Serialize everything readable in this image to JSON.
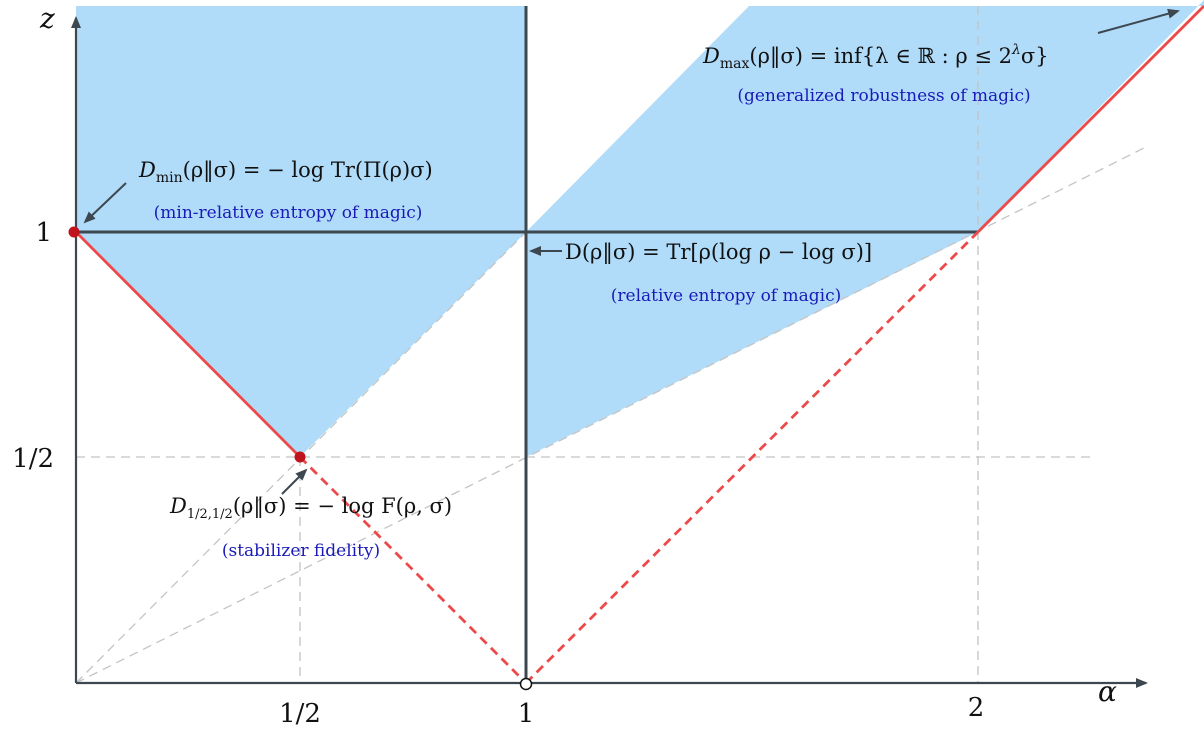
{
  "axes": {
    "x_label": "α",
    "y_label": "z",
    "x_ticks": [
      "1/2",
      "1",
      "2"
    ],
    "y_ticks": [
      "1/2",
      "1"
    ]
  },
  "annotations": {
    "dmax_formula": "D_max(ρ‖σ) = inf{λ ∈ ℝ : ρ ≤ 2^λ σ}",
    "dmax_formula_parts": {
      "d": "D",
      "sub": "max",
      "body": "(ρ‖σ) = inf{λ ∈ ℝ : ρ ≤ 2",
      "sup": "λ",
      "tail": "σ}"
    },
    "dmax_note": "(generalized robustness of magic)",
    "dmin_formula": "D_min(ρ‖σ) = − log Tr(Π(ρ)σ)",
    "dmin_formula_parts": {
      "d": "D",
      "sub": "min",
      "body": "(ρ‖σ) = − log Tr(Π(ρ)σ)"
    },
    "dmin_note": "(min-relative entropy of magic)",
    "rel_formula": "D(ρ‖σ) = Tr[ρ(log ρ − log σ)]",
    "rel_note": "(relative entropy of magic)",
    "fid_formula": "D_{1/2,1/2}(ρ‖σ) = − log F(ρ, σ)",
    "fid_formula_parts": {
      "d": "D",
      "sub": "1/2,1/2",
      "body": "(ρ‖σ) = − log F(ρ, σ)"
    },
    "fid_note": "(stabilizer fidelity)"
  },
  "colors": {
    "region_fill": "#b0dcf9",
    "boundary_line": "#ec4a4a",
    "axis_line": "#3d4750",
    "guide_line": "#c4c4c4",
    "note_text": "#1a1ab8",
    "point_fill": "#c0141c"
  }
}
